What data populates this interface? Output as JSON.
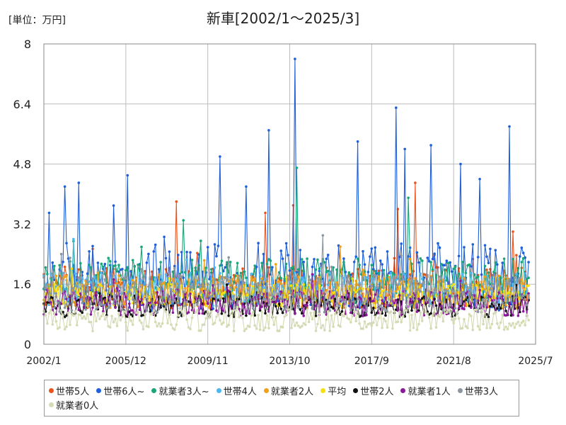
{
  "page": {
    "unit_label": "[単位：万円]",
    "title": "新車[2002/1～2025/3]"
  },
  "chart_data": {
    "type": "line",
    "title": "新車[2002/1～2025/3]",
    "unit": "[単位：万円]",
    "x_start": "2002/1",
    "x_end": "2025/3",
    "xlim": [
      "2002/1",
      "2025/7"
    ],
    "x_tick_labels": [
      "2002/1",
      "2005/12",
      "2009/11",
      "2013/10",
      "2017/9",
      "2021/8",
      "2025/7"
    ],
    "ylim": [
      0,
      8
    ],
    "y_tick_labels": [
      "0",
      "1.6",
      "3.2",
      "4.8",
      "6.4",
      "8"
    ],
    "grid": true,
    "legend_position": "bottom",
    "series": [
      {
        "name": "世帯5人",
        "color": "#e8541a",
        "base": 1.5,
        "noise": 0.55,
        "spikes": [
          [
            "2008/5",
            3.8
          ],
          [
            "2012/8",
            3.5
          ],
          [
            "2013/12",
            3.7
          ],
          [
            "2018/12",
            3.6
          ],
          [
            "2019/10",
            4.3
          ],
          [
            "2024/6",
            3.0
          ]
        ]
      },
      {
        "name": "世帯6人~",
        "color": "#1f5fd9",
        "base": 1.8,
        "noise": 0.9,
        "spikes": [
          [
            "2002/4",
            3.5
          ],
          [
            "2003/1",
            4.2
          ],
          [
            "2003/9",
            4.3
          ],
          [
            "2006/1",
            4.5
          ],
          [
            "2010/6",
            5.0
          ],
          [
            "2011/9",
            4.2
          ],
          [
            "2012/10",
            5.7
          ],
          [
            "2014/1",
            7.6
          ],
          [
            "2017/1",
            5.4
          ],
          [
            "2018/11",
            6.3
          ],
          [
            "2019/4",
            5.2
          ],
          [
            "2020/7",
            5.3
          ],
          [
            "2021/12",
            4.8
          ],
          [
            "2022/11",
            4.4
          ],
          [
            "2024/4",
            5.8
          ]
        ]
      },
      {
        "name": "就業者3人~",
        "color": "#1aa67a",
        "base": 1.7,
        "noise": 0.6,
        "spikes": [
          [
            "2014/2",
            4.7
          ],
          [
            "2019/6",
            3.9
          ],
          [
            "2008/9",
            3.3
          ]
        ]
      },
      {
        "name": "世帯4人",
        "color": "#4fb6f0",
        "base": 1.45,
        "noise": 0.45,
        "spikes": [
          [
            "2003/6",
            2.8
          ]
        ]
      },
      {
        "name": "就業者2人",
        "color": "#f0a01a",
        "base": 1.4,
        "noise": 0.45,
        "spikes": [
          [
            "2016/3",
            2.6
          ]
        ]
      },
      {
        "name": "平均",
        "color": "#f5e010",
        "base": 1.3,
        "noise": 0.3,
        "spikes": []
      },
      {
        "name": "世帯2人",
        "color": "#111111",
        "base": 1.0,
        "noise": 0.28,
        "spikes": []
      },
      {
        "name": "就業者1人",
        "color": "#8a1a9a",
        "base": 1.1,
        "noise": 0.35,
        "spikes": []
      },
      {
        "name": "世帯3人",
        "color": "#8a96a2",
        "base": 1.35,
        "noise": 0.5,
        "spikes": [
          [
            "2015/5",
            2.9
          ]
        ]
      },
      {
        "name": "就業者0人",
        "color": "#d4dbb4",
        "base": 0.65,
        "noise": 0.3,
        "spikes": []
      }
    ]
  }
}
